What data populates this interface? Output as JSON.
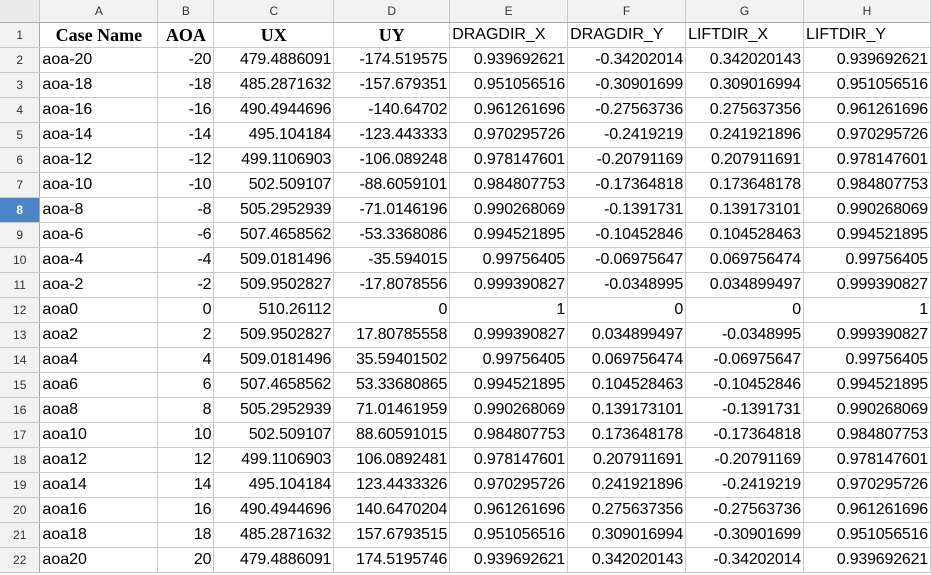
{
  "columns": [
    "A",
    "B",
    "C",
    "D",
    "E",
    "F",
    "G",
    "H"
  ],
  "active_row": 8,
  "header_row": {
    "row_number": "1",
    "cells": [
      "Case Name",
      "AOA",
      "UX",
      "UY",
      "DRAGDIR_X",
      "DRAGDIR_Y",
      "LIFTDIR_X",
      "LIFTDIR_Y"
    ]
  },
  "rows": [
    {
      "n": "2",
      "cells": [
        "aoa-20",
        "-20",
        "479.4886091",
        "-174.519575",
        "0.939692621",
        "-0.34202014",
        "0.342020143",
        "0.939692621"
      ]
    },
    {
      "n": "3",
      "cells": [
        "aoa-18",
        "-18",
        "485.2871632",
        "-157.679351",
        "0.951056516",
        "-0.30901699",
        "0.309016994",
        "0.951056516"
      ]
    },
    {
      "n": "4",
      "cells": [
        "aoa-16",
        "-16",
        "490.4944696",
        "-140.64702",
        "0.961261696",
        "-0.27563736",
        "0.275637356",
        "0.961261696"
      ]
    },
    {
      "n": "5",
      "cells": [
        "aoa-14",
        "-14",
        "495.104184",
        "-123.443333",
        "0.970295726",
        "-0.2419219",
        "0.241921896",
        "0.970295726"
      ]
    },
    {
      "n": "6",
      "cells": [
        "aoa-12",
        "-12",
        "499.1106903",
        "-106.089248",
        "0.978147601",
        "-0.20791169",
        "0.207911691",
        "0.978147601"
      ]
    },
    {
      "n": "7",
      "cells": [
        "aoa-10",
        "-10",
        "502.509107",
        "-88.6059101",
        "0.984807753",
        "-0.17364818",
        "0.173648178",
        "0.984807753"
      ]
    },
    {
      "n": "8",
      "cells": [
        "aoa-8",
        "-8",
        "505.2952939",
        "-71.0146196",
        "0.990268069",
        "-0.1391731",
        "0.139173101",
        "0.990268069"
      ]
    },
    {
      "n": "9",
      "cells": [
        "aoa-6",
        "-6",
        "507.4658562",
        "-53.3368086",
        "0.994521895",
        "-0.10452846",
        "0.104528463",
        "0.994521895"
      ]
    },
    {
      "n": "10",
      "cells": [
        "aoa-4",
        "-4",
        "509.0181496",
        "-35.594015",
        "0.99756405",
        "-0.06975647",
        "0.069756474",
        "0.99756405"
      ]
    },
    {
      "n": "11",
      "cells": [
        "aoa-2",
        "-2",
        "509.9502827",
        "-17.8078556",
        "0.999390827",
        "-0.0348995",
        "0.034899497",
        "0.999390827"
      ]
    },
    {
      "n": "12",
      "cells": [
        "aoa0",
        "0",
        "510.26112",
        "0",
        "1",
        "0",
        "0",
        "1"
      ]
    },
    {
      "n": "13",
      "cells": [
        "aoa2",
        "2",
        "509.9502827",
        "17.80785558",
        "0.999390827",
        "0.034899497",
        "-0.0348995",
        "0.999390827"
      ]
    },
    {
      "n": "14",
      "cells": [
        "aoa4",
        "4",
        "509.0181496",
        "35.59401502",
        "0.99756405",
        "0.069756474",
        "-0.06975647",
        "0.99756405"
      ]
    },
    {
      "n": "15",
      "cells": [
        "aoa6",
        "6",
        "507.4658562",
        "53.33680865",
        "0.994521895",
        "0.104528463",
        "-0.10452846",
        "0.994521895"
      ]
    },
    {
      "n": "16",
      "cells": [
        "aoa8",
        "8",
        "505.2952939",
        "71.01461959",
        "0.990268069",
        "0.139173101",
        "-0.1391731",
        "0.990268069"
      ]
    },
    {
      "n": "17",
      "cells": [
        "aoa10",
        "10",
        "502.509107",
        "88.60591015",
        "0.984807753",
        "0.173648178",
        "-0.17364818",
        "0.984807753"
      ]
    },
    {
      "n": "18",
      "cells": [
        "aoa12",
        "12",
        "499.1106903",
        "106.0892481",
        "0.978147601",
        "0.207911691",
        "-0.20791169",
        "0.978147601"
      ]
    },
    {
      "n": "19",
      "cells": [
        "aoa14",
        "14",
        "495.104184",
        "123.4433326",
        "0.970295726",
        "0.241921896",
        "-0.2419219",
        "0.970295726"
      ]
    },
    {
      "n": "20",
      "cells": [
        "aoa16",
        "16",
        "490.4944696",
        "140.6470204",
        "0.961261696",
        "0.275637356",
        "-0.27563736",
        "0.961261696"
      ]
    },
    {
      "n": "21",
      "cells": [
        "aoa18",
        "18",
        "485.2871632",
        "157.6793515",
        "0.951056516",
        "0.309016994",
        "-0.30901699",
        "0.951056516"
      ]
    },
    {
      "n": "22",
      "cells": [
        "aoa20",
        "20",
        "479.4886091",
        "174.5195746",
        "0.939692621",
        "0.342020143",
        "-0.34202014",
        "0.939692621"
      ]
    }
  ],
  "colors": {
    "active_row_header": "#4a86c7",
    "header_bg": "#f2f2f2",
    "gridline": "#c9c9c9"
  }
}
